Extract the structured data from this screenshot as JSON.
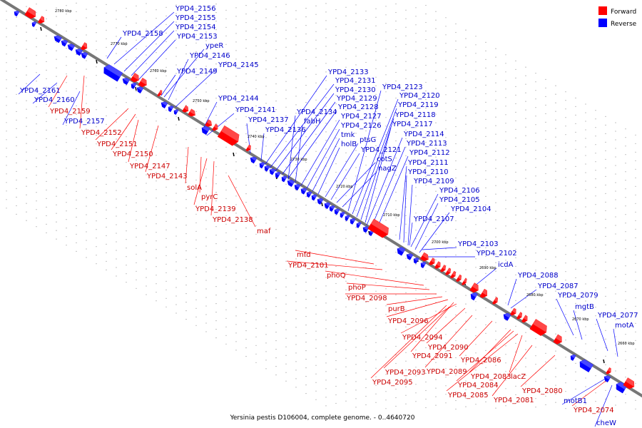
{
  "caption": "Yersinia pestis D106004, complete genome. - 0..4640720",
  "legend": [
    {
      "label": "Forward",
      "color": "#ff0000"
    },
    {
      "label": "Reverse",
      "color": "#0000ff"
    }
  ],
  "colors": {
    "forward": "#ff0000",
    "reverse": "#0000ff",
    "backbone": "#777777"
  },
  "ticks": [
    "2780 kbp",
    "2770 kbp",
    "2760 kbp",
    "2750 kbp",
    "2740 kbp",
    "2730 kbp",
    "2720 kbp",
    "2710 kbp",
    "2700 kbp",
    "2690 kbp",
    "2680 kbp",
    "2670 kbp",
    "2660 kbp"
  ],
  "reverse_labels": [
    "YPD4_2156",
    "YPD4_2155",
    "YPD4_2154",
    "YPD4_2158",
    "YPD4_2153",
    "ypeR",
    "YPD4_2146",
    "YPD4_2149",
    "YPD4_2145",
    "YPD4_2161",
    "YPD4_2160",
    "YPD4_2157",
    "YPD4_2144",
    "YPD4_2141",
    "YPD4_2137",
    "YPD4_2136",
    "YPD4_2133",
    "YPD4_2131",
    "YPD4_2130",
    "YPD4_2129",
    "YPD4_2128",
    "YPD4_2134",
    "fabH",
    "YPD4_2127",
    "YPD4_2126",
    "tmk",
    "holB",
    "ptsG",
    "YPD4_2121",
    "cotS",
    "nagZ",
    "YPD4_2123",
    "YPD4_2120",
    "YPD4_2119",
    "YPD4_2118",
    "YPD4_2117",
    "YPD4_2114",
    "YPD4_2113",
    "YPD4_2112",
    "YPD4_2111",
    "YPD4_2110",
    "YPD4_2109",
    "YPD4_2106",
    "YPD4_2105",
    "YPD4_2104",
    "YPD4_2107",
    "YPD4_2103",
    "YPD4_2102",
    "icdA",
    "YPD4_2088",
    "YPD4_2087",
    "YPD4_2079",
    "mgtB",
    "YPD4_2077",
    "motA",
    "motB1",
    "cheW"
  ],
  "forward_labels": [
    "YPD4_2159",
    "YPD4_2152",
    "YPD4_2151",
    "YPD4_2150",
    "YPD4_2147",
    "YPD4_2143",
    "solA",
    "pyrC",
    "YPD4_2139",
    "YPD4_2138",
    "maf",
    "mfd",
    "YPD4_2101",
    "phoQ",
    "phoP",
    "YPD4_2098",
    "purB",
    "YPD4_2096",
    "YPD4_2094",
    "YPD4_2090",
    "YPD4_2091",
    "YPD4_2086",
    "YPD4_2089",
    "YPD4_2093",
    "YPD4_2095",
    "YPD4_2083",
    "lacZ",
    "YPD4_2084",
    "YPD4_2085",
    "YPD4_2081",
    "YPD4_2080",
    "YPD4_2074"
  ]
}
